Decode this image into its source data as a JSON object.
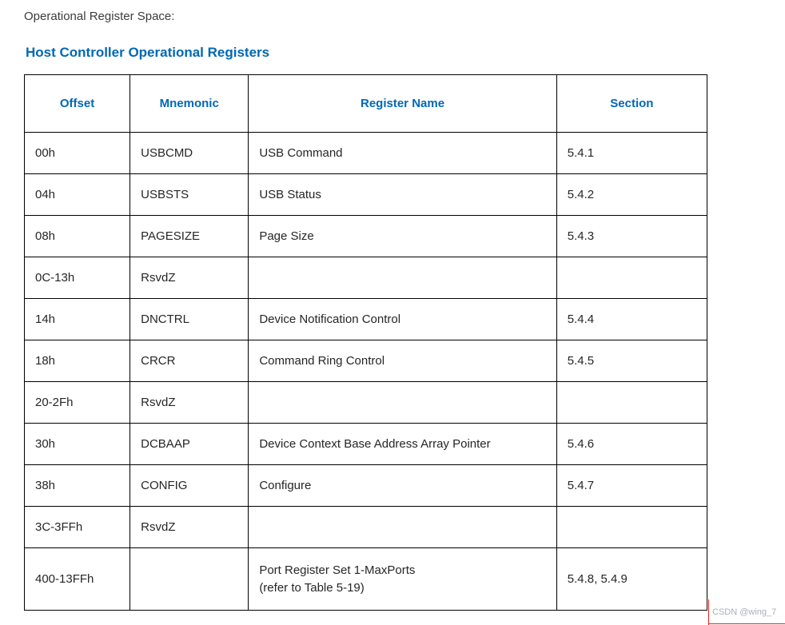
{
  "page": {
    "intro": "Operational Register Space:",
    "title": "Host Controller Operational Registers",
    "watermark": "CSDN @wing_7"
  },
  "colors": {
    "accent_blue": "#0068b5",
    "body_text": "#262626",
    "table_border": "#000000",
    "watermark_gray": "#aab0b8",
    "crop_mark_red": "#e02020"
  },
  "table": {
    "headers": [
      "Offset",
      "Mnemonic",
      "Register Name",
      "Section"
    ],
    "rows": [
      {
        "offset": "00h",
        "mnemonic": "USBCMD",
        "name": "USB Command",
        "section": "5.4.1"
      },
      {
        "offset": "04h",
        "mnemonic": "USBSTS",
        "name": "USB Status",
        "section": "5.4.2"
      },
      {
        "offset": "08h",
        "mnemonic": "PAGESIZE",
        "name": "Page Size",
        "section": "5.4.3"
      },
      {
        "offset": "0C-13h",
        "mnemonic": "RsvdZ",
        "name": "",
        "section": ""
      },
      {
        "offset": "14h",
        "mnemonic": "DNCTRL",
        "name": "Device Notification Control",
        "section": "5.4.4"
      },
      {
        "offset": "18h",
        "mnemonic": "CRCR",
        "name": "Command Ring Control",
        "section": "5.4.5"
      },
      {
        "offset": "20-2Fh",
        "mnemonic": "RsvdZ",
        "name": "",
        "section": ""
      },
      {
        "offset": "30h",
        "mnemonic": "DCBAAP",
        "name": "Device Context Base Address Array Pointer",
        "section": "5.4.6"
      },
      {
        "offset": "38h",
        "mnemonic": "CONFIG",
        "name": "Configure",
        "section": "5.4.7"
      },
      {
        "offset": "3C-3FFh",
        "mnemonic": "RsvdZ",
        "name": "",
        "section": ""
      },
      {
        "offset": "400-13FFh",
        "mnemonic": "",
        "name": "Port Register Set 1-MaxPorts\n(refer to Table 5-19)",
        "section": "5.4.8, 5.4.9"
      }
    ]
  }
}
